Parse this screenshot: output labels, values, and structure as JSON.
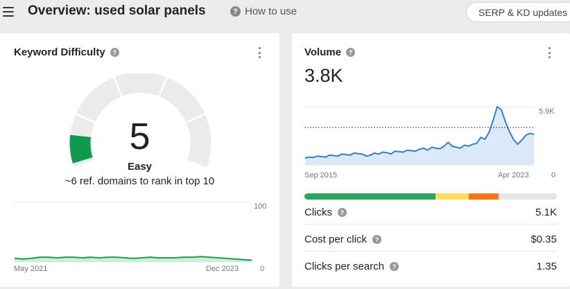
{
  "header": {
    "title": "Overview: used solar panels",
    "help_label": "How to use",
    "serp_button": "SERP & KD updates",
    "menu_icon": "hamburger-icon"
  },
  "keyword_difficulty": {
    "title": "Keyword Difficulty",
    "value": "5",
    "level": "Easy",
    "note": "~6 ref. domains to rank in top 10",
    "score": 5,
    "score_max": 100,
    "colors": {
      "gauge_track": "#ebebeb",
      "gauge_fill": "#0f9a4e",
      "trend_line": "#1e9e4a",
      "trend_fill": "#c9efd6"
    },
    "trend": {
      "x_start": "May 2021",
      "x_end": "Dec 2023",
      "y_max_label": "100",
      "y_min_label": "0",
      "ylim": [
        0,
        100
      ],
      "values": [
        6,
        5,
        6,
        8,
        8,
        7,
        8,
        8,
        7,
        8,
        7,
        8,
        8,
        7,
        6,
        7,
        8,
        7,
        7,
        7,
        8,
        8,
        9,
        8,
        7,
        6,
        5,
        4,
        3
      ]
    }
  },
  "volume": {
    "title": "Volume",
    "value": "3.8K",
    "colors": {
      "line": "#2f80d1",
      "fill": "#dbe9f8",
      "avg_line": "#444444"
    },
    "trend": {
      "x_start": "Sep 2015",
      "x_end": "Apr 2023",
      "y_max_label": "5.9K",
      "y_min_label": "0",
      "ylim": [
        0,
        5900
      ],
      "average": 3800,
      "values": [
        700,
        800,
        750,
        900,
        850,
        800,
        1000,
        950,
        900,
        1100,
        1050,
        1000,
        1200,
        1150,
        1100,
        900,
        1000,
        1200,
        1100,
        1300,
        1250,
        1100,
        1400,
        1350,
        1300,
        1500,
        1450,
        1400,
        1600,
        1700,
        1500,
        1800,
        1700,
        1650,
        1900,
        2300,
        1900,
        1800,
        1700,
        2000,
        1900,
        2100,
        2200,
        2800,
        2600,
        3300,
        4500,
        5900,
        5600,
        4400,
        3400,
        2600,
        2100,
        2500,
        3000,
        3200,
        3100
      ]
    },
    "metric_bar": [
      {
        "color": "#2ba55c",
        "fraction": 0.52
      },
      {
        "color": "#fcdc5c",
        "fraction": 0.13
      },
      {
        "color": "#f5761a",
        "fraction": 0.12
      },
      {
        "color": "#e6e6e6",
        "fraction": 0.23
      }
    ],
    "metrics": [
      {
        "label": "Clicks",
        "value": "5.1K"
      },
      {
        "label": "Cost per click",
        "value": "$0.35"
      },
      {
        "label": "Clicks per search",
        "value": "1.35"
      }
    ]
  }
}
